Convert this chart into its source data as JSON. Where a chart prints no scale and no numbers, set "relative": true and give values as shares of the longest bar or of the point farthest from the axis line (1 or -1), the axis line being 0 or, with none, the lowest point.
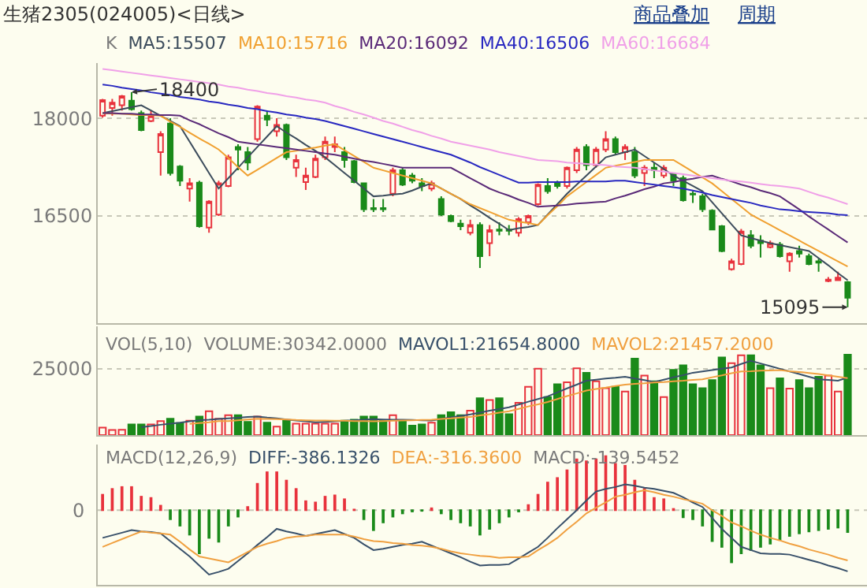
{
  "chart_data": [
    {
      "type": "candlestick",
      "title": "生猪2305(024005)<日线>",
      "subtitle": "K",
      "annotations": [
        "商品叠加",
        "周期",
        {
          "text": "18400",
          "y": 18400
        },
        "15095"
      ],
      "categories": [
        null,
        null,
        null,
        null,
        null,
        null,
        null,
        null,
        null,
        null,
        null,
        null,
        null,
        null,
        null,
        null,
        null,
        null,
        null,
        null,
        null,
        null,
        null,
        null,
        null,
        null,
        null,
        null,
        null,
        null,
        null,
        null,
        null,
        null,
        null,
        null,
        null,
        null,
        null,
        null,
        null,
        null,
        null,
        null,
        null,
        null,
        null,
        null,
        null,
        null,
        null,
        null,
        null,
        null,
        null,
        null,
        null,
        null,
        null,
        null,
        null,
        null,
        null,
        null,
        null,
        null,
        null,
        null,
        null,
        null,
        null,
        null,
        null,
        null,
        null,
        null,
        null,
        null
      ],
      "ohlc": [
        [
          18040,
          18300,
          18010,
          18280
        ],
        [
          18160,
          18300,
          18040,
          18240
        ],
        [
          18200,
          18360,
          18120,
          18340
        ],
        [
          18270,
          18400,
          18120,
          18140
        ],
        [
          18080,
          18120,
          17800,
          17820
        ],
        [
          17960,
          18120,
          17940,
          18040
        ],
        [
          17480,
          17800,
          17120,
          17760
        ],
        [
          17920,
          18000,
          17120,
          17160
        ],
        [
          17260,
          17280,
          16960,
          17040
        ],
        [
          16920,
          17080,
          16720,
          17000
        ],
        [
          17010,
          17040,
          16320,
          16340
        ],
        [
          16320,
          16740,
          16240,
          16720
        ],
        [
          16520,
          17040,
          16500,
          17000
        ],
        [
          16960,
          17440,
          16940,
          17400
        ],
        [
          17560,
          17600,
          17200,
          17520
        ],
        [
          17480,
          17560,
          17200,
          17320
        ],
        [
          17680,
          18200,
          17640,
          18180
        ],
        [
          18040,
          18120,
          17880,
          17980
        ],
        [
          17800,
          18000,
          17720,
          17900
        ],
        [
          17900,
          17920,
          17360,
          17400
        ],
        [
          17240,
          17440,
          17100,
          17360
        ],
        [
          17020,
          17240,
          16900,
          17120
        ],
        [
          17100,
          17440,
          17080,
          17380
        ],
        [
          17400,
          17720,
          17360,
          17640
        ],
        [
          17560,
          17720,
          17480,
          17600
        ],
        [
          17480,
          17560,
          17240,
          17360
        ],
        [
          17340,
          17360,
          17000,
          17020
        ],
        [
          17000,
          17000,
          16560,
          16600
        ],
        [
          16620,
          16760,
          16560,
          16600
        ],
        [
          16620,
          16760,
          16560,
          16600
        ],
        [
          16840,
          17240,
          16800,
          17200
        ],
        [
          17200,
          17240,
          16960,
          16980
        ],
        [
          17120,
          17160,
          17000,
          17040
        ],
        [
          17000,
          17080,
          16880,
          16960
        ],
        [
          16920,
          17040,
          16880,
          17000
        ],
        [
          16760,
          16800,
          16500,
          16520
        ],
        [
          16500,
          16520,
          16400,
          16420
        ],
        [
          16380,
          16440,
          16280,
          16340
        ],
        [
          16240,
          16440,
          16200,
          16360
        ],
        [
          16360,
          16400,
          15700,
          15880
        ],
        [
          16080,
          16360,
          15880,
          16280
        ],
        [
          16290,
          16400,
          16200,
          16270
        ],
        [
          16290,
          16360,
          16200,
          16270
        ],
        [
          16240,
          16480,
          16180,
          16450
        ],
        [
          16400,
          16520,
          16360,
          16500
        ],
        [
          16680,
          17000,
          16660,
          16980
        ],
        [
          16960,
          17080,
          16840,
          16880
        ],
        [
          17000,
          17040,
          16920,
          16960
        ],
        [
          16960,
          17260,
          16920,
          17240
        ],
        [
          17200,
          17560,
          17160,
          17520
        ],
        [
          17560,
          17600,
          17200,
          17280
        ],
        [
          17280,
          17560,
          17240,
          17520
        ],
        [
          17520,
          17800,
          17480,
          17680
        ],
        [
          17680,
          17720,
          17440,
          17480
        ],
        [
          17480,
          17600,
          17360,
          17560
        ],
        [
          17480,
          17560,
          17080,
          17120
        ],
        [
          17160,
          17280,
          16960,
          17240
        ],
        [
          17240,
          17320,
          17080,
          17200
        ],
        [
          17120,
          17280,
          17080,
          17240
        ],
        [
          17140,
          17160,
          16960,
          17040
        ],
        [
          17080,
          17120,
          16720,
          16740
        ],
        [
          16840,
          16880,
          16700,
          16830
        ],
        [
          16800,
          16840,
          16560,
          16600
        ],
        [
          16580,
          16600,
          16280,
          16290
        ],
        [
          16340,
          16360,
          15940,
          15960
        ],
        [
          15680,
          15840,
          15660,
          15800
        ],
        [
          15760,
          16300,
          15740,
          16260
        ],
        [
          16200,
          16280,
          16000,
          16040
        ],
        [
          16120,
          16200,
          15860,
          16080
        ],
        [
          16020,
          16120,
          16000,
          16080
        ],
        [
          16060,
          16100,
          15860,
          15880
        ],
        [
          15800,
          15940,
          15640,
          15920
        ],
        [
          15960,
          16040,
          15860,
          15920
        ],
        [
          15880,
          15920,
          15740,
          15760
        ],
        [
          15800,
          15840,
          15640,
          15780
        ],
        [
          15500,
          15560,
          15480,
          15520
        ],
        [
          15510,
          15640,
          15500,
          15550
        ],
        [
          15480,
          15500,
          15095,
          15240
        ]
      ],
      "colors": [
        "#e8323c",
        "#e8323c",
        "#e8323c",
        "#1a8a1a",
        "#1a8a1a",
        "#e8323c",
        "#e8323c",
        "#1a8a1a",
        "#1a8a1a",
        "#e8323c",
        "#1a8a1a",
        "#e8323c",
        "#e8323c",
        "#e8323c",
        "#1a8a1a",
        "#1a8a1a",
        "#e8323c",
        "#1a8a1a",
        "#e8323c",
        "#1a8a1a",
        "#e8323c",
        "#e8323c",
        "#e8323c",
        "#e8323c",
        "#e8323c",
        "#1a8a1a",
        "#1a8a1a",
        "#1a8a1a",
        "#1a8a1a",
        "#1a8a1a",
        "#e8323c",
        "#1a8a1a",
        "#1a8a1a",
        "#1a8a1a",
        "#e8323c",
        "#1a8a1a",
        "#1a8a1a",
        "#1a8a1a",
        "#e8323c",
        "#1a8a1a",
        "#e8323c",
        "#1a8a1a",
        "#1a8a1a",
        "#e8323c",
        "#e8323c",
        "#e8323c",
        "#1a8a1a",
        "#1a8a1a",
        "#e8323c",
        "#e8323c",
        "#1a8a1a",
        "#e8323c",
        "#e8323c",
        "#1a8a1a",
        "#e8323c",
        "#1a8a1a",
        "#e8323c",
        "#1a8a1a",
        "#e8323c",
        "#1a8a1a",
        "#1a8a1a",
        "#1a8a1a",
        "#1a8a1a",
        "#1a8a1a",
        "#1a8a1a",
        "#e8323c",
        "#e8323c",
        "#1a8a1a",
        "#1a8a1a",
        "#e8323c",
        "#1a8a1a",
        "#e8323c",
        "#1a8a1a",
        "#1a8a1a",
        "#1a8a1a",
        "#e8323c",
        "#e8323c",
        "#1a8a1a"
      ],
      "series": [
        {
          "name": "MA5:15507",
          "type": "line",
          "color": "#3c4c5c",
          "values": [
            18080,
            18110,
            18140,
            18170,
            18200,
            18120,
            18040,
            17960,
            17880,
            17640,
            17400,
            17160,
            16920,
            17080,
            17240,
            17400,
            17560,
            17720,
            17880,
            17780,
            17690,
            17590,
            17500,
            17400,
            17280,
            17160,
            17040,
            16920,
            16800,
            16810,
            16830,
            16840,
            16890,
            16950,
            17000,
            16920,
            16840,
            16760,
            16660,
            16570,
            16470,
            16380,
            16280,
            16310,
            16330,
            16360,
            16520,
            16680,
            16840,
            16980,
            17120,
            17260,
            17400,
            17440,
            17480,
            17520,
            17420,
            17320,
            17220,
            17120,
            17040,
            16960,
            16880,
            16710,
            16540,
            16370,
            16200,
            16160,
            16120,
            16080,
            16050,
            16020,
            15990,
            15960,
            15850,
            15740,
            15620,
            15510
          ]
        },
        {
          "name": "MA10:15716",
          "type": "line",
          "color": "#f0a030",
          "values": [
            18080,
            18070,
            18070,
            18060,
            18050,
            18050,
            18040,
            17950,
            17870,
            17780,
            17690,
            17610,
            17520,
            17390,
            17250,
            17120,
            17210,
            17300,
            17390,
            17480,
            17500,
            17530,
            17550,
            17580,
            17600,
            17510,
            17420,
            17330,
            17240,
            17200,
            17160,
            17120,
            17080,
            17040,
            17000,
            16920,
            16840,
            16760,
            16680,
            16620,
            16560,
            16500,
            16440,
            16410,
            16390,
            16360,
            16510,
            16650,
            16800,
            16910,
            17020,
            17130,
            17240,
            17270,
            17300,
            17330,
            17360,
            17360,
            17360,
            17360,
            17270,
            17180,
            17090,
            17000,
            16880,
            16760,
            16640,
            16520,
            16440,
            16360,
            16280,
            16200,
            16120,
            16040,
            15960,
            15880,
            15800,
            15720
          ]
        },
        {
          "name": "MA20:16092",
          "type": "line",
          "color": "#5a2a78",
          "values": [
            18080,
            18080,
            18070,
            18070,
            18060,
            18060,
            18050,
            18050,
            18040,
            17970,
            17910,
            17840,
            17770,
            17710,
            17640,
            17620,
            17600,
            17580,
            17560,
            17540,
            17520,
            17500,
            17480,
            17460,
            17440,
            17410,
            17380,
            17350,
            17330,
            17300,
            17270,
            17240,
            17240,
            17240,
            17240,
            17240,
            17240,
            17160,
            17080,
            17000,
            16920,
            16860,
            16810,
            16750,
            16700,
            16640,
            16650,
            16660,
            16670,
            16690,
            16700,
            16710,
            16720,
            16770,
            16810,
            16860,
            16910,
            16950,
            17000,
            17020,
            17050,
            17070,
            17100,
            17120,
            17070,
            17030,
            16980,
            16940,
            16890,
            16850,
            16800,
            16700,
            16600,
            16490,
            16390,
            16290,
            16190,
            16090
          ]
        },
        {
          "name": "MA40:16506",
          "type": "line",
          "color": "#2828c0",
          "values": [
            18520,
            18500,
            18470,
            18450,
            18430,
            18400,
            18380,
            18360,
            18330,
            18310,
            18290,
            18260,
            18240,
            18210,
            18190,
            18160,
            18140,
            18110,
            18090,
            18060,
            18040,
            18010,
            17990,
            17960,
            17920,
            17880,
            17840,
            17800,
            17760,
            17720,
            17680,
            17640,
            17600,
            17560,
            17520,
            17480,
            17440,
            17380,
            17320,
            17250,
            17190,
            17130,
            17070,
            17010,
            17010,
            17020,
            17020,
            17020,
            17020,
            17030,
            17030,
            17030,
            17030,
            17040,
            17040,
            17020,
            17000,
            16980,
            16960,
            16940,
            16920,
            16890,
            16860,
            16820,
            16790,
            16760,
            16730,
            16700,
            16660,
            16630,
            16600,
            16590,
            16570,
            16560,
            16550,
            16540,
            16520,
            16510
          ]
        },
        {
          "name": "MA60:16684",
          "type": "line",
          "color": "#f0a0e8",
          "values": [
            18760,
            18740,
            18720,
            18700,
            18680,
            18660,
            18640,
            18620,
            18600,
            18580,
            18560,
            18540,
            18520,
            18490,
            18470,
            18440,
            18420,
            18390,
            18370,
            18340,
            18320,
            18290,
            18270,
            18240,
            18190,
            18150,
            18100,
            18060,
            18010,
            17960,
            17920,
            17870,
            17820,
            17780,
            17730,
            17690,
            17640,
            17610,
            17580,
            17550,
            17520,
            17480,
            17450,
            17420,
            17390,
            17360,
            17350,
            17340,
            17320,
            17310,
            17300,
            17290,
            17280,
            17260,
            17250,
            17240,
            17220,
            17200,
            17180,
            17160,
            17140,
            17120,
            17100,
            17080,
            17060,
            17040,
            17030,
            17010,
            16990,
            16970,
            16960,
            16940,
            16920,
            16870,
            16820,
            16780,
            16730,
            16680
          ]
        }
      ],
      "ylim": [
        14850,
        18850
      ],
      "yticks": [
        16500,
        18000
      ],
      "grid": "y",
      "tick_labels": "y"
    },
    {
      "type": "bar",
      "title": "VOL(5,10)",
      "annotations": [
        "VOLUME:30342.0000"
      ],
      "categories": [
        null,
        null,
        null,
        null,
        null,
        null,
        null,
        null,
        null,
        null,
        null,
        null,
        null,
        null,
        null,
        null,
        null,
        null,
        null,
        null,
        null,
        null,
        null,
        null,
        null,
        null,
        null,
        null,
        null,
        null,
        null,
        null,
        null,
        null,
        null,
        null,
        null,
        null,
        null,
        null,
        null,
        null,
        null,
        null,
        null,
        null,
        null,
        null,
        null,
        null,
        null,
        null,
        null,
        null,
        null,
        null,
        null,
        null,
        null,
        null,
        null,
        null,
        null,
        null,
        null,
        null,
        null,
        null,
        null,
        null,
        null,
        null,
        null,
        null,
        null,
        null,
        null,
        null
      ],
      "series": [
        {
          "colors": [
            "#e8323c",
            "#e8323c",
            "#e8323c",
            "#1a8a1a",
            "#1a8a1a",
            "#e8323c",
            "#e8323c",
            "#1a8a1a",
            "#1a8a1a",
            "#e8323c",
            "#1a8a1a",
            "#e8323c",
            "#e8323c",
            "#e8323c",
            "#1a8a1a",
            "#1a8a1a",
            "#e8323c",
            "#1a8a1a",
            "#e8323c",
            "#1a8a1a",
            "#e8323c",
            "#e8323c",
            "#e8323c",
            "#e8323c",
            "#e8323c",
            "#1a8a1a",
            "#1a8a1a",
            "#1a8a1a",
            "#1a8a1a",
            "#1a8a1a",
            "#e8323c",
            "#1a8a1a",
            "#1a8a1a",
            "#1a8a1a",
            "#e8323c",
            "#1a8a1a",
            "#1a8a1a",
            "#1a8a1a",
            "#e8323c",
            "#1a8a1a",
            "#e8323c",
            "#1a8a1a",
            "#1a8a1a",
            "#e8323c",
            "#e8323c",
            "#e8323c",
            "#1a8a1a",
            "#1a8a1a",
            "#e8323c",
            "#e8323c",
            "#1a8a1a",
            "#e8323c",
            "#e8323c",
            "#1a8a1a",
            "#e8323c",
            "#1a8a1a",
            "#e8323c",
            "#1a8a1a",
            "#e8323c",
            "#1a8a1a",
            "#1a8a1a",
            "#1a8a1a",
            "#1a8a1a",
            "#1a8a1a",
            "#1a8a1a",
            "#e8323c",
            "#e8323c",
            "#1a8a1a",
            "#1a8a1a",
            "#e8323c",
            "#1a8a1a",
            "#e8323c",
            "#1a8a1a",
            "#1a8a1a",
            "#1a8a1a",
            "#e8323c",
            "#e8323c",
            "#1a8a1a"
          ],
          "values": [
            2800,
            1900,
            2000,
            4000,
            4000,
            4000,
            5300,
            6200,
            4500,
            5400,
            7000,
            9000,
            6200,
            7500,
            7500,
            5000,
            7000,
            4700,
            3200,
            5400,
            4300,
            4300,
            4300,
            4300,
            4300,
            5400,
            5800,
            7000,
            7000,
            5400,
            7500,
            5400,
            3600,
            4000,
            4700,
            7500,
            8600,
            7500,
            9200,
            13900,
            13200,
            13900,
            7900,
            12200,
            18200,
            25000,
            14300,
            19200,
            19900,
            25200,
            23500,
            20300,
            17700,
            18200,
            16400,
            28800,
            22400,
            20300,
            14300,
            24600,
            26300,
            19200,
            17700,
            20700,
            29300,
            27100,
            30100,
            30100,
            26300,
            17700,
            21400,
            17500,
            20700,
            17700,
            22000,
            22400,
            16400,
            30300
          ]
        },
        {
          "name": "MAVOL1:21654.8000",
          "type": "line",
          "color": "#38506a",
          "values": [
            null,
            null,
            null,
            null,
            3000,
            3400,
            3900,
            4300,
            4700,
            5200,
            5600,
            5800,
            6100,
            6300,
            6500,
            6800,
            7000,
            6600,
            6300,
            5900,
            5500,
            5200,
            4800,
            5000,
            5200,
            5400,
            5600,
            5800,
            6000,
            5900,
            5800,
            5800,
            5700,
            5600,
            5500,
            6100,
            6700,
            7200,
            7800,
            8500,
            9200,
            9800,
            10500,
            11500,
            12600,
            13600,
            14600,
            16100,
            17600,
            19000,
            20500,
            20900,
            21300,
            21600,
            22000,
            21300,
            20700,
            20000,
            20900,
            21800,
            22600,
            23500,
            24000,
            24500,
            25000,
            25500,
            26800,
            28000,
            27000,
            26000,
            25000,
            24000,
            23000,
            22000,
            21000,
            20800,
            20500,
            21700
          ]
        },
        {
          "name": "MAVOL2:21457.2000",
          "type": "line",
          "color": "#f0a040",
          "values": [
            null,
            null,
            null,
            null,
            null,
            null,
            null,
            null,
            null,
            4200,
            4500,
            4800,
            5300,
            5300,
            5600,
            5900,
            6200,
            6100,
            6000,
            5900,
            5700,
            5600,
            5500,
            5500,
            5400,
            5400,
            5300,
            5300,
            5200,
            5300,
            5400,
            5500,
            5600,
            5700,
            5800,
            6100,
            6300,
            6600,
            6800,
            7400,
            7900,
            8500,
            9000,
            9900,
            10800,
            11600,
            12500,
            13600,
            14700,
            15700,
            16800,
            17400,
            17900,
            18500,
            19000,
            19300,
            19500,
            19800,
            20000,
            20300,
            20500,
            20800,
            21000,
            21800,
            22500,
            23300,
            24000,
            24100,
            24300,
            24400,
            24500,
            24100,
            23800,
            23400,
            23000,
            22500,
            22000,
            21500
          ]
        }
      ],
      "ylim": [
        0,
        41000
      ],
      "yticks": [
        25000
      ],
      "grid": "y",
      "tick_labels": "y"
    },
    {
      "type": "bar",
      "title": "MACD(12,26,9)",
      "relative": true,
      "tick_labels": false,
      "categories": [
        null,
        null,
        null,
        null,
        null,
        null,
        null,
        null,
        null,
        null,
        null,
        null,
        null,
        null,
        null,
        null,
        null,
        null,
        null,
        null,
        null,
        null,
        null,
        null,
        null,
        null,
        null,
        null,
        null,
        null,
        null,
        null,
        null,
        null,
        null,
        null,
        null,
        null,
        null,
        null,
        null,
        null,
        null,
        null,
        null,
        null,
        null,
        null,
        null,
        null,
        null,
        null,
        null,
        null,
        null,
        null,
        null,
        null,
        null,
        null,
        null,
        null,
        null,
        null,
        null,
        null,
        null,
        null,
        null,
        null,
        null,
        null,
        null,
        null,
        null,
        null,
        null,
        null
      ],
      "ref_lines": [
        {
          "axis": "y",
          "value": 0,
          "label": "0",
          "color": "#c8c8b8",
          "line_style": "dotted"
        }
      ],
      "series": [
        {
          "name": "DIFF:-386.1326",
          "type": "line",
          "color": "#38506a",
          "values": [
            -0.43,
            -0.39,
            -0.35,
            -0.31,
            -0.33,
            -0.34,
            -0.36,
            -0.48,
            -0.6,
            -0.72,
            -0.86,
            -1,
            -0.96,
            -0.91,
            -0.79,
            -0.67,
            -0.54,
            -0.42,
            -0.29,
            -0.33,
            -0.36,
            -0.4,
            -0.37,
            -0.34,
            -0.31,
            -0.37,
            -0.43,
            -0.53,
            -0.62,
            -0.6,
            -0.57,
            -0.54,
            -0.52,
            -0.49,
            -0.55,
            -0.61,
            -0.67,
            -0.73,
            -0.8,
            -0.86,
            -0.85,
            -0.85,
            -0.84,
            -0.75,
            -0.66,
            -0.57,
            -0.43,
            -0.28,
            -0.14,
            0,
            0.15,
            0.29,
            0.33,
            0.36,
            0.4,
            0.38,
            0.35,
            0.33,
            0.3,
            0.27,
            0.2,
            0.12,
            0.05,
            -0.12,
            -0.29,
            -0.43,
            -0.57,
            -0.62,
            -0.67,
            -0.68,
            -0.68,
            -0.69,
            -0.73,
            -0.77,
            -0.81,
            -0.86,
            -0.9,
            -0.95
          ]
        },
        {
          "name": "DEA:-316.3600",
          "type": "line",
          "color": "#f0a040",
          "values": [
            -0.57,
            -0.51,
            -0.45,
            -0.39,
            -0.33,
            -0.35,
            -0.36,
            -0.38,
            -0.49,
            -0.61,
            -0.72,
            -0.75,
            -0.78,
            -0.81,
            -0.73,
            -0.65,
            -0.57,
            -0.52,
            -0.48,
            -0.43,
            -0.41,
            -0.4,
            -0.38,
            -0.38,
            -0.38,
            -0.38,
            -0.41,
            -0.45,
            -0.48,
            -0.49,
            -0.51,
            -0.52,
            -0.54,
            -0.55,
            -0.57,
            -0.6,
            -0.64,
            -0.67,
            -0.69,
            -0.71,
            -0.72,
            -0.74,
            -0.73,
            -0.73,
            -0.72,
            -0.62,
            -0.53,
            -0.43,
            -0.3,
            -0.18,
            -0.05,
            0.04,
            0.12,
            0.21,
            0.24,
            0.28,
            0.31,
            0.28,
            0.24,
            0.21,
            0.17,
            0.14,
            0.1,
            0,
            -0.09,
            -0.19,
            -0.25,
            -0.32,
            -0.38,
            -0.43,
            -0.47,
            -0.52,
            -0.56,
            -0.61,
            -0.65,
            -0.69,
            -0.74,
            -0.78
          ]
        },
        {
          "name": "MACD:-139.5452",
          "type": "bar",
          "colors": [
            "#e8323c",
            "#e8323c",
            "#e8323c",
            "#e8323c",
            "#e8323c",
            "#e8323c",
            "#e8323c",
            "#1a8a1a",
            "#1a8a1a",
            "#1a8a1a",
            "#1a8a1a",
            "#1a8a1a",
            "#1a8a1a",
            "#1a8a1a",
            "#1a8a1a",
            "#e8323c",
            "#e8323c",
            "#e8323c",
            "#e8323c",
            "#e8323c",
            "#e8323c",
            "#e8323c",
            "#e8323c",
            "#e8323c",
            "#e8323c",
            "#e8323c",
            "#e8323c",
            "#1a8a1a",
            "#1a8a1a",
            "#1a8a1a",
            "#1a8a1a",
            "#1a8a1a",
            "#1a8a1a",
            "#1a8a1a",
            "#e8323c",
            "#1a8a1a",
            "#1a8a1a",
            "#1a8a1a",
            "#1a8a1a",
            "#1a8a1a",
            "#1a8a1a",
            "#1a8a1a",
            "#1a8a1a",
            "#1a8a1a",
            "#e8323c",
            "#e8323c",
            "#e8323c",
            "#e8323c",
            "#e8323c",
            "#e8323c",
            "#e8323c",
            "#e8323c",
            "#e8323c",
            "#e8323c",
            "#e8323c",
            "#e8323c",
            "#e8323c",
            "#e8323c",
            "#e8323c",
            "#e8323c",
            "#1a8a1a",
            "#1a8a1a",
            "#1a8a1a",
            "#1a8a1a",
            "#1a8a1a",
            "#1a8a1a",
            "#1a8a1a",
            "#1a8a1a",
            "#1a8a1a",
            "#1a8a1a",
            "#1a8a1a",
            "#1a8a1a",
            "#1a8a1a",
            "#1a8a1a",
            "#1a8a1a",
            "#1a8a1a",
            "#1a8a1a",
            "#1a8a1a"
          ],
          "values": [
            0.24,
            0.33,
            0.36,
            0.36,
            0.21,
            0.19,
            0.07,
            -0.14,
            -0.24,
            -0.38,
            -0.67,
            -0.43,
            -0.49,
            -0.24,
            -0.1,
            0.05,
            0.41,
            0.59,
            0.59,
            0.46,
            0.33,
            0.14,
            0.12,
            0.21,
            0.23,
            0.17,
            0.01,
            -0.14,
            -0.31,
            -0.19,
            -0.1,
            -0.05,
            -0.02,
            -0.01,
            0.03,
            -0.05,
            -0.14,
            -0.19,
            -0.24,
            -0.38,
            -0.29,
            -0.19,
            -0.1,
            -0.02,
            0.08,
            0.24,
            0.43,
            0.5,
            0.62,
            0.79,
            0.76,
            0.79,
            0.84,
            0.72,
            0.69,
            0.46,
            0.33,
            0.19,
            0.17,
            0.02,
            -0.11,
            -0.14,
            -0.24,
            -0.48,
            -0.57,
            -0.81,
            -0.67,
            -0.62,
            -0.57,
            -0.52,
            -0.46,
            -0.4,
            -0.36,
            -0.33,
            -0.31,
            -0.29,
            -0.27,
            -0.34
          ]
        }
      ]
    }
  ]
}
